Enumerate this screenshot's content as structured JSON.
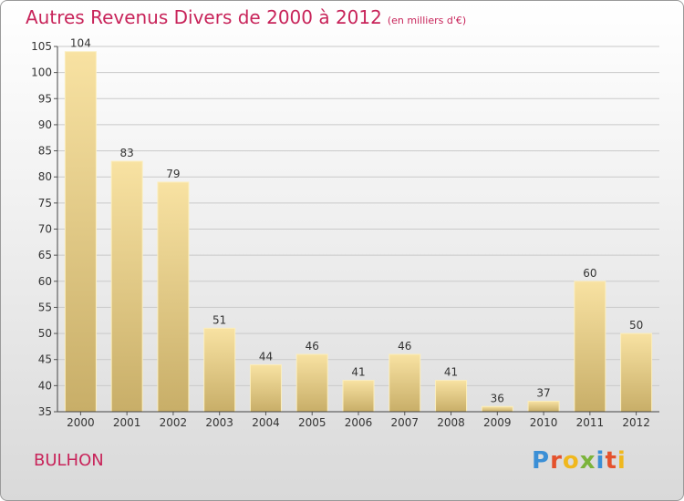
{
  "header": {
    "title": "Autres Revenus Divers de 2000 à 2012",
    "subtitle": "(en milliers d'€)"
  },
  "footer": {
    "commune": "BULHON",
    "logo_text": "Proxiti"
  },
  "colors": {
    "title": "#c8245a",
    "bar_light": "#f7e0a0",
    "bar_dark": "#c9b06a"
  },
  "chart_data": {
    "type": "bar",
    "title": "Autres Revenus Divers de 2000 à 2012",
    "subtitle": "(en milliers d'€)",
    "categories": [
      "2000",
      "2001",
      "2002",
      "2003",
      "2004",
      "2005",
      "2006",
      "2007",
      "2008",
      "2009",
      "2010",
      "2011",
      "2012"
    ],
    "values": [
      104,
      83,
      79,
      51,
      44,
      46,
      41,
      46,
      41,
      36,
      37,
      60,
      50
    ],
    "ylim": [
      35,
      105
    ],
    "yticks": [
      35,
      40,
      45,
      50,
      55,
      60,
      65,
      70,
      75,
      80,
      85,
      90,
      95,
      100,
      105
    ],
    "grid": true,
    "legend": "none"
  }
}
